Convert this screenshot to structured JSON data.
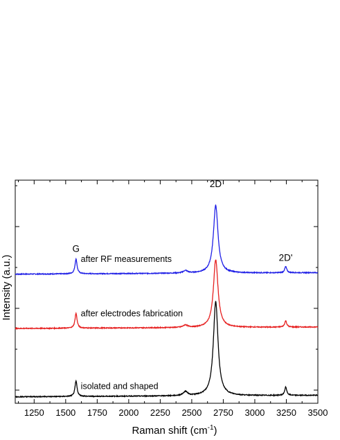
{
  "chart_data": {
    "type": "line",
    "xlabel": "Raman shift (cm",
    "xlabel_sup": "-1",
    "xlabel_suffix": ")",
    "ylabel": "Intensity (a.u.)",
    "xlim": [
      1100,
      3500
    ],
    "ylim": [
      0,
      1
    ],
    "x_ticks": [
      1250,
      1500,
      1750,
      2000,
      2250,
      2500,
      2750,
      3000,
      3250,
      3500
    ],
    "y_tick_count": 3,
    "grid": false,
    "series": [
      {
        "annotation": "after RF measurements",
        "color": "#1f1fe6",
        "baseline": 0.606,
        "slope": 3e-06,
        "peaks": [
          {
            "center": 1582,
            "height": 0.072,
            "width": 10
          },
          {
            "center": 2450,
            "height": 0.012,
            "width": 20
          },
          {
            "center": 2690,
            "height": 0.33,
            "width": 22
          },
          {
            "center": 3245,
            "height": 0.03,
            "width": 10
          }
        ]
      },
      {
        "annotation": "after electrodes fabrication",
        "color": "#e61f1f",
        "baseline": 0.341,
        "slope": 3e-06,
        "peaks": [
          {
            "center": 1582,
            "height": 0.072,
            "width": 10
          },
          {
            "center": 2450,
            "height": 0.012,
            "width": 20
          },
          {
            "center": 2690,
            "height": 0.33,
            "width": 22
          },
          {
            "center": 3245,
            "height": 0.03,
            "width": 10
          }
        ]
      },
      {
        "annotation": "isolated and shaped",
        "color": "#000000",
        "baseline": 0.008,
        "slope": 3e-06,
        "peaks": [
          {
            "center": 1582,
            "height": 0.075,
            "width": 10
          },
          {
            "center": 2450,
            "height": 0.02,
            "width": 20
          },
          {
            "center": 2690,
            "height": 0.46,
            "width": 22
          },
          {
            "center": 3245,
            "height": 0.04,
            "width": 10
          }
        ]
      }
    ],
    "peak_labels": [
      {
        "text": "G",
        "x": 1582,
        "y": 0.715
      },
      {
        "text": "2D",
        "x": 2690,
        "y": 1.03
      },
      {
        "text": "2D'",
        "x": 3245,
        "y": 0.67
      }
    ]
  }
}
